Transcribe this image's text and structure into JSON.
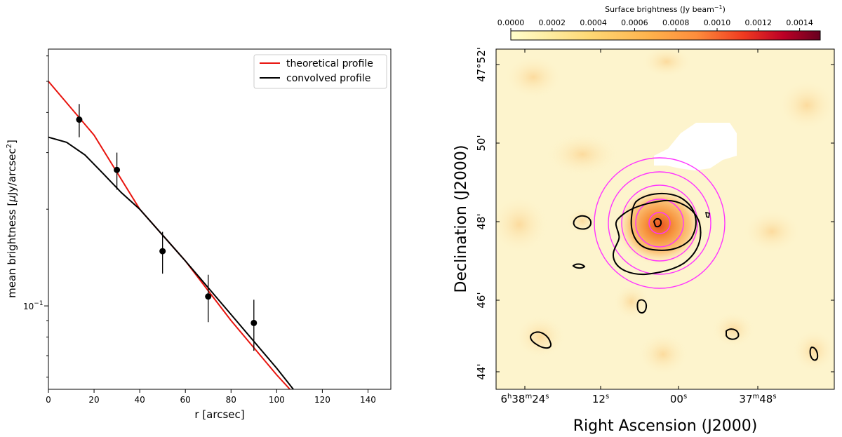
{
  "chart_data": [
    {
      "type": "line",
      "xlabel": "r [arcsec]",
      "ylabel_prefix": "mean brightness [",
      "ylabel_mu": "μ",
      "ylabel_unit": "Jy/arcsec",
      "ylabel_exp": "2",
      "ylabel_suffix": "]",
      "xlim": [
        0,
        150
      ],
      "ylim": [
        0.055,
        0.63
      ],
      "yscale": "log",
      "x_ticks": [
        0,
        20,
        40,
        60,
        80,
        100,
        120,
        140
      ],
      "y_major_label": {
        "base": "10",
        "exp": "−1",
        "value": 0.1
      },
      "y_minor_ticks": [
        0.06,
        0.07,
        0.08,
        0.09,
        0.2,
        0.3,
        0.4,
        0.5,
        0.6
      ],
      "legend_position": "top-right",
      "series": [
        {
          "name": "theoretical profile",
          "color": "#e8140e",
          "x": [
            0,
            20,
            40,
            60,
            80,
            100,
            110
          ],
          "y": [
            0.5,
            0.34,
            0.2,
            0.138,
            0.09,
            0.061,
            0.051
          ]
        },
        {
          "name": "convolved profile",
          "color": "#000000",
          "x": [
            0,
            8,
            16,
            24,
            32,
            40,
            60,
            80,
            100,
            110
          ],
          "y": [
            0.335,
            0.323,
            0.295,
            0.258,
            0.225,
            0.2,
            0.138,
            0.094,
            0.064,
            0.052
          ]
        }
      ],
      "points": {
        "x": [
          13.5,
          30,
          50,
          70,
          90
        ],
        "y": [
          0.38,
          0.265,
          0.148,
          0.107,
          0.0885
        ],
        "yerr": [
          0.045,
          0.035,
          0.022,
          0.018,
          0.016
        ]
      }
    },
    {
      "type": "heatmap",
      "title": "Surface brightness (Jy beam",
      "title_exp": "−1",
      "title_close": ")",
      "colorbar_ticks": [
        "0.0000",
        "0.0002",
        "0.0004",
        "0.0006",
        "0.0008",
        "0.0010",
        "0.0012",
        "0.0014"
      ],
      "colorbar_range": [
        0,
        0.0015
      ],
      "xlabel": "Right Ascension (J2000)",
      "ylabel": "Declination (J2000)",
      "ra_ticks": [
        {
          "pre": "6",
          "h": "h",
          "mid": "38",
          "m": "m",
          "sec": "24",
          "s": "s"
        },
        {
          "pre": "",
          "h": "",
          "mid": "",
          "m": "",
          "sec": "12",
          "s": "s"
        },
        {
          "pre": "",
          "h": "",
          "mid": "",
          "m": "",
          "sec": "00",
          "s": "s"
        },
        {
          "pre": "",
          "h": "",
          "mid": "37",
          "m": "m",
          "sec": "48",
          "s": "s"
        }
      ],
      "dec_ticks": [
        "47°52'",
        "50'",
        "48'",
        "46'",
        "44'"
      ],
      "ring_color": "#ff33ff",
      "contour_color": "#000000"
    }
  ]
}
